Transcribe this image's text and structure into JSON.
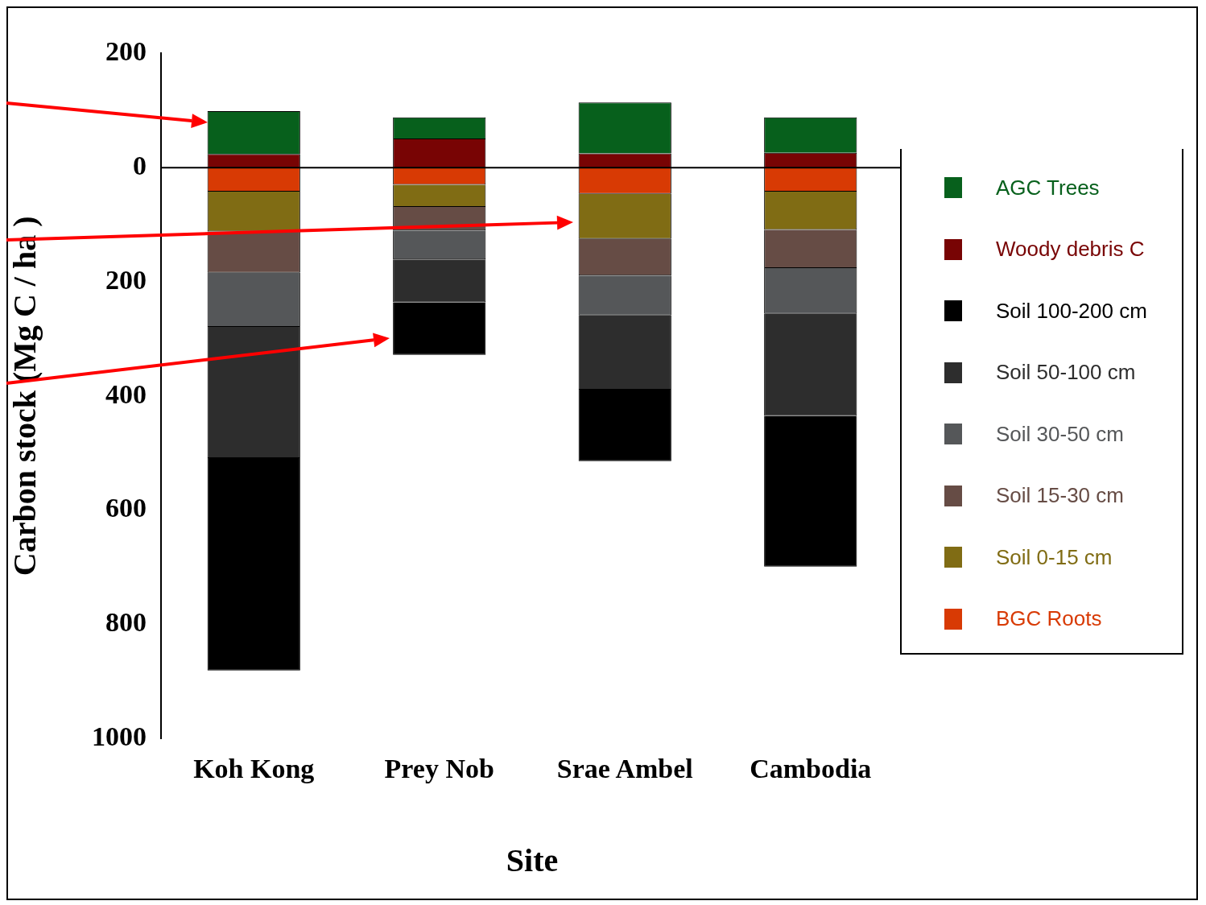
{
  "chart_data": {
    "type": "bar",
    "stacked": true,
    "xlabel": "Site",
    "ylabel": "Carbon stock (Mg C / ha )",
    "categories": [
      "Koh Kong",
      "Prey Nob",
      "Srae Ambel",
      "Cambodia"
    ],
    "series": [
      {
        "name": "BGC Roots",
        "color": "#d83a04",
        "values": [
          -42,
          -30,
          -46,
          -42
        ]
      },
      {
        "name": "Soil 0-15 cm",
        "color": "#806c14",
        "values": [
          -70,
          -39,
          -79,
          -67
        ]
      },
      {
        "name": "Soil 15-30 cm",
        "color": "#664c45",
        "values": [
          -72,
          -41,
          -64,
          -67
        ]
      },
      {
        "name": "Soil 30-50 cm",
        "color": "#555759",
        "values": [
          -95,
          -51,
          -70,
          -80
        ]
      },
      {
        "name": "Soil 50-100 cm",
        "color": "#2d2d2d",
        "values": [
          -230,
          -75,
          -130,
          -179
        ]
      },
      {
        "name": "Soil 100-200 cm",
        "color": "#000000",
        "values": [
          -372,
          -92,
          -125,
          -264
        ]
      },
      {
        "name": "Woody debris C",
        "color": "#780404",
        "values": [
          24,
          51,
          25,
          26
        ]
      },
      {
        "name": "AGC Trees",
        "color": "#07601c",
        "values": [
          75,
          37,
          89,
          62
        ]
      }
    ],
    "ylim": [
      -1000,
      200
    ],
    "yticks": [
      {
        "value": 200,
        "label": "200"
      },
      0,
      {
        "value": -200,
        "label": "200"
      },
      {
        "value": -400,
        "label": "400"
      },
      {
        "value": -600,
        "label": "600"
      },
      {
        "value": -800,
        "label": "800"
      },
      {
        "value": -1000,
        "label": "1000"
      }
    ],
    "ref_lines": [
      {
        "axis": "y",
        "value": 0,
        "color": "#000000"
      }
    ],
    "legend": "right"
  }
}
